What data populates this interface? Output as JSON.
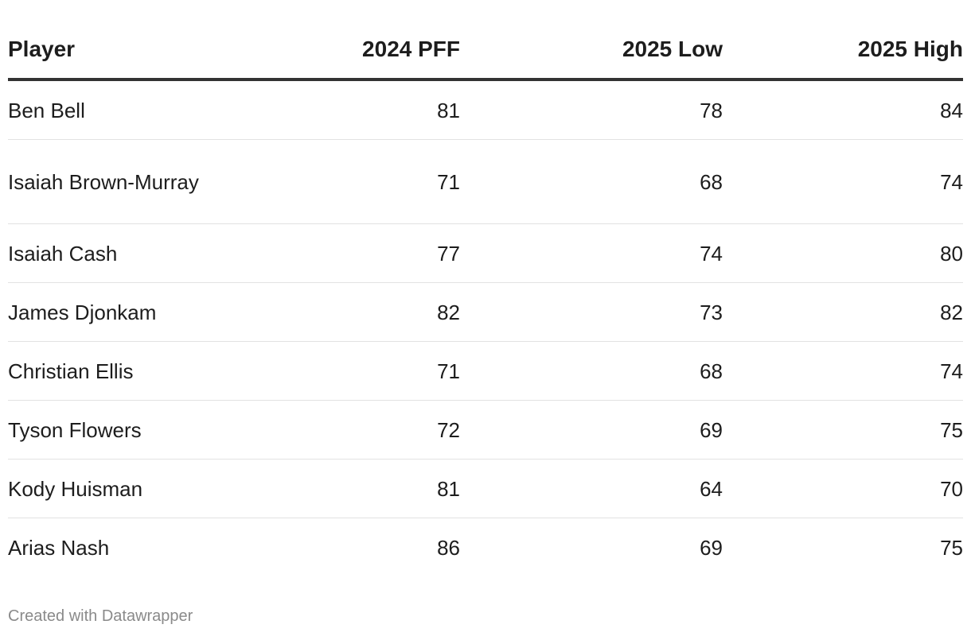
{
  "chart_data": {
    "type": "table",
    "columns": [
      "Player",
      "2024 PFF",
      "2025 Low",
      "2025 High"
    ],
    "rows": [
      {
        "player": "Ben Bell",
        "pff_2024": 81,
        "low_2025": 78,
        "high_2025": 84
      },
      {
        "player": "Isaiah Brown-Murray",
        "pff_2024": 71,
        "low_2025": 68,
        "high_2025": 74
      },
      {
        "player": "Isaiah Cash",
        "pff_2024": 77,
        "low_2025": 74,
        "high_2025": 80
      },
      {
        "player": "James Djonkam",
        "pff_2024": 82,
        "low_2025": 73,
        "high_2025": 82
      },
      {
        "player": "Christian Ellis",
        "pff_2024": 71,
        "low_2025": 68,
        "high_2025": 74
      },
      {
        "player": "Tyson Flowers",
        "pff_2024": 72,
        "low_2025": 69,
        "high_2025": 75
      },
      {
        "player": "Kody Huisman",
        "pff_2024": 81,
        "low_2025": 64,
        "high_2025": 70
      },
      {
        "player": "Arias Nash",
        "pff_2024": 86,
        "low_2025": 69,
        "high_2025": 75
      }
    ]
  },
  "footer": {
    "credit": "Created with Datawrapper"
  }
}
